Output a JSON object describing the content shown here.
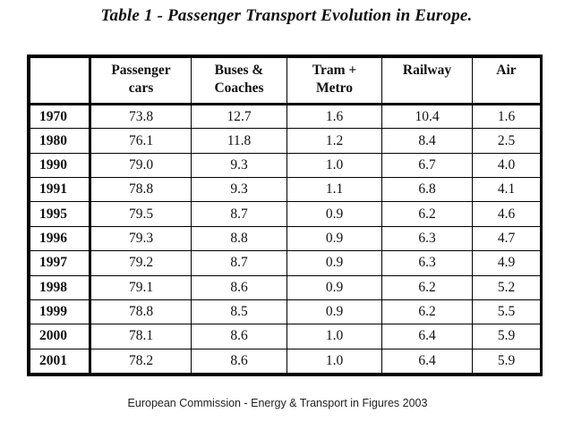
{
  "title": "Table 1 - Passenger Transport Evolution in Europe.",
  "table": {
    "headers": [
      "",
      "Passenger\ncars",
      "Buses &\nCoaches",
      "Tram +\nMetro",
      "Railway",
      "Air"
    ],
    "rows": [
      [
        "1970",
        "73.8",
        "12.7",
        "1.6",
        "10.4",
        "1.6"
      ],
      [
        "1980",
        "76.1",
        "11.8",
        "1.2",
        "8.4",
        "2.5"
      ],
      [
        "1990",
        "79.0",
        "9.3",
        "1.0",
        "6.7",
        "4.0"
      ],
      [
        "1991",
        "78.8",
        "9.3",
        "1.1",
        "6.8",
        "4.1"
      ],
      [
        "1995",
        "79.5",
        "8.7",
        "0.9",
        "6.2",
        "4.6"
      ],
      [
        "1996",
        "79.3",
        "8.8",
        "0.9",
        "6.3",
        "4.7"
      ],
      [
        "1997",
        "79.2",
        "8.7",
        "0.9",
        "6.3",
        "4.9"
      ],
      [
        "1998",
        "79.1",
        "8.6",
        "0.9",
        "6.2",
        "5.2"
      ],
      [
        "1999",
        "78.8",
        "8.5",
        "0.9",
        "6.2",
        "5.5"
      ],
      [
        "2000",
        "78.1",
        "8.6",
        "1.0",
        "6.4",
        "5.9"
      ],
      [
        "2001",
        "78.2",
        "8.6",
        "1.0",
        "6.4",
        "5.9"
      ]
    ]
  },
  "caption": "European Commission - Energy & Transport in Figures 2003"
}
